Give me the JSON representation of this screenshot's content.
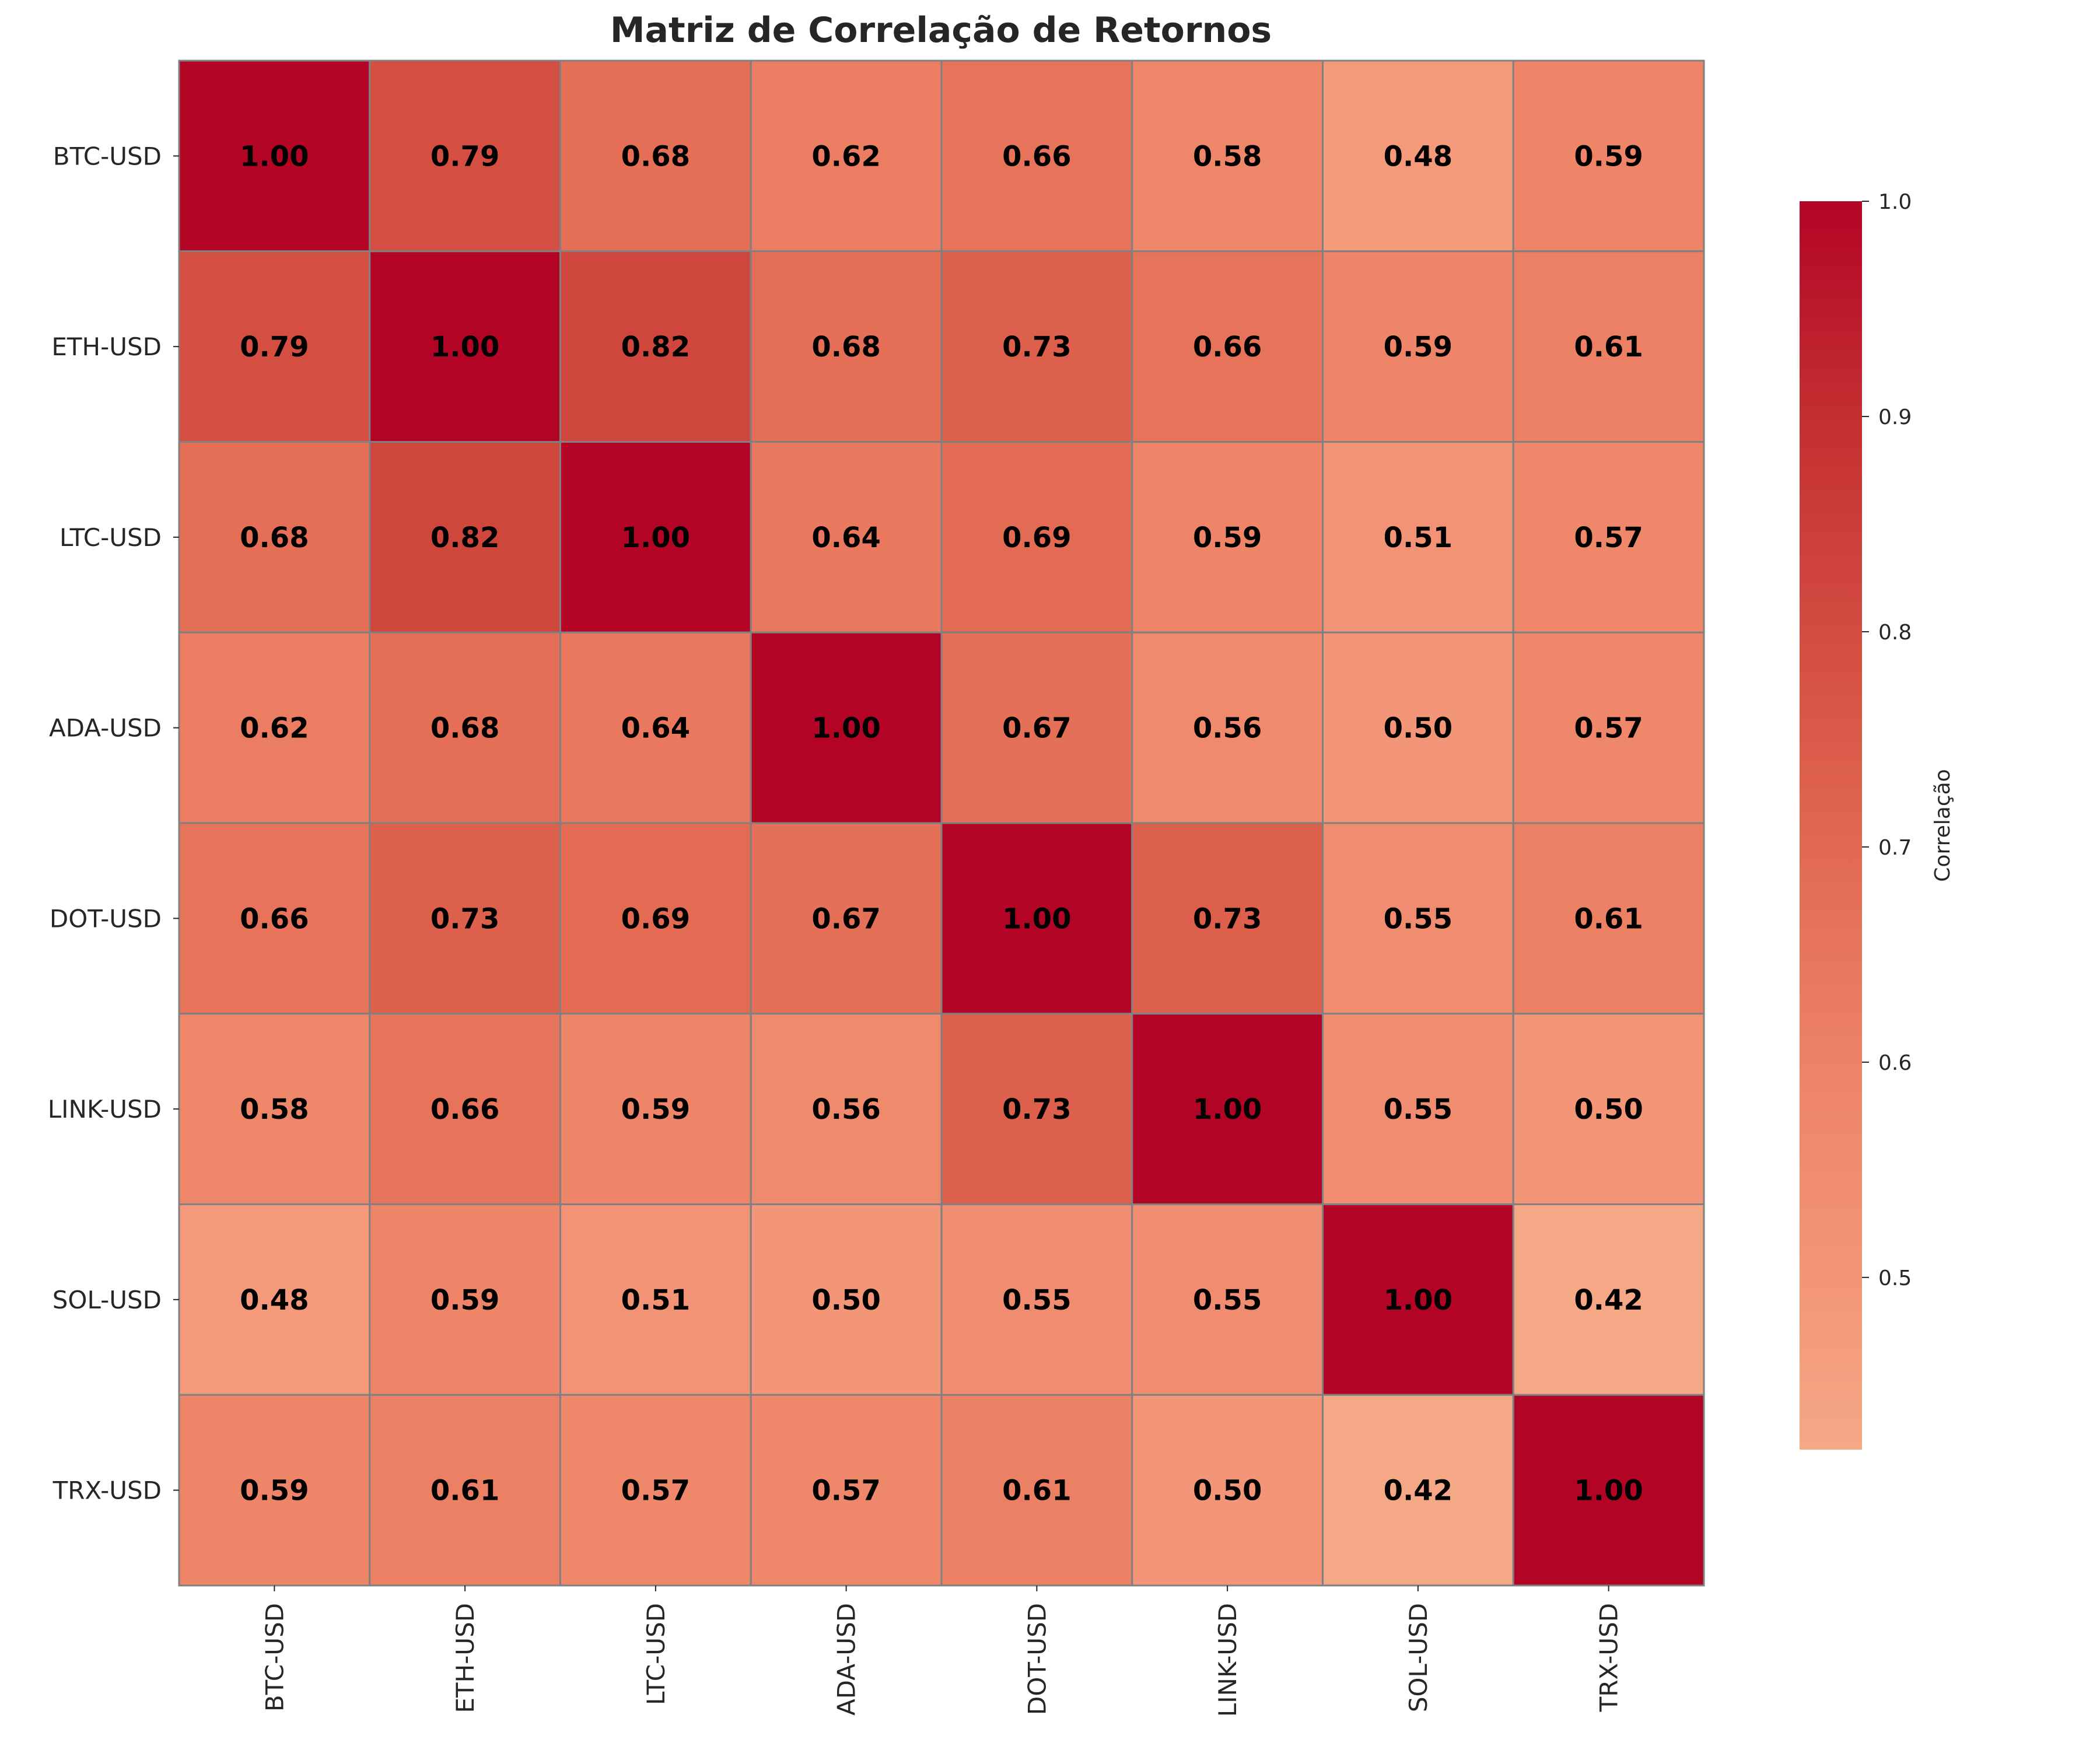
{
  "chart_data": {
    "type": "heatmap",
    "title": "Matriz de Correlação de Retornos",
    "xlabel": "",
    "ylabel": "",
    "x_labels": [
      "BTC-USD",
      "ETH-USD",
      "LTC-USD",
      "ADA-USD",
      "DOT-USD",
      "LINK-USD",
      "SOL-USD",
      "TRX-USD"
    ],
    "y_labels": [
      "BTC-USD",
      "ETH-USD",
      "LTC-USD",
      "ADA-USD",
      "DOT-USD",
      "LINK-USD",
      "SOL-USD",
      "TRX-USD"
    ],
    "values": [
      [
        1.0,
        0.79,
        0.68,
        0.62,
        0.66,
        0.58,
        0.48,
        0.59
      ],
      [
        0.79,
        1.0,
        0.82,
        0.68,
        0.73,
        0.66,
        0.59,
        0.61
      ],
      [
        0.68,
        0.82,
        1.0,
        0.64,
        0.69,
        0.59,
        0.51,
        0.57
      ],
      [
        0.62,
        0.68,
        0.64,
        1.0,
        0.67,
        0.56,
        0.5,
        0.57
      ],
      [
        0.66,
        0.73,
        0.69,
        0.67,
        1.0,
        0.73,
        0.55,
        0.61
      ],
      [
        0.58,
        0.66,
        0.59,
        0.56,
        0.73,
        1.0,
        0.55,
        0.5
      ],
      [
        0.48,
        0.59,
        0.51,
        0.5,
        0.55,
        0.55,
        1.0,
        0.42
      ],
      [
        0.59,
        0.61,
        0.57,
        0.57,
        0.61,
        0.5,
        0.42,
        1.0
      ]
    ],
    "value_format": "2 decimals",
    "colormap": "coolwarm (red half)",
    "colorbar": {
      "label": "Correlação",
      "range": [
        0.42,
        1.0
      ],
      "ticks": [
        "0.5",
        "0.6",
        "0.7",
        "0.8",
        "0.9",
        "1.0"
      ],
      "tick_values": [
        0.5,
        0.6,
        0.7,
        0.8,
        0.9,
        1.0
      ]
    },
    "grid_line_color": "#808080",
    "annotation_color": "#000000"
  }
}
